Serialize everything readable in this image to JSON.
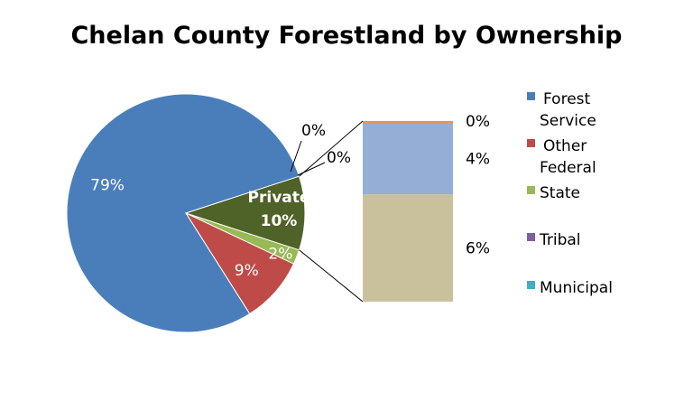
{
  "chart_data": {
    "type": "pie",
    "subtype": "bar-of-pie",
    "title": "Chelan County Forestland by Ownership",
    "slices": [
      {
        "name": "Forest Service",
        "value": 79,
        "label": "79%",
        "color": "#4A7EBB"
      },
      {
        "name": "Other Federal",
        "value": 9,
        "label": "9%",
        "color": "#BE4B48"
      },
      {
        "name": "State",
        "value": 2,
        "label": "2%",
        "color": "#98B954"
      },
      {
        "name": "Tribal",
        "value": 0,
        "label": "0%",
        "color": "#7D60A0"
      },
      {
        "name": "Municipal",
        "value": 0,
        "label": "0%",
        "color": "#46AAC5"
      }
    ],
    "aggregate_slice": {
      "name": "Private",
      "value": 10,
      "label_name": "Private",
      "label_value": "10%",
      "color": "#4F6228"
    },
    "bar_segments": [
      {
        "value": 6,
        "label": "6%",
        "color": "#C9C19C"
      },
      {
        "value": 4,
        "label": "4%",
        "color": "#95AED6"
      },
      {
        "value": 0.1,
        "label": "0%",
        "color": "#E6925A"
      }
    ],
    "legend": {
      "position": "right",
      "entries": [
        {
          "lines": [
            "Forest",
            "Service"
          ],
          "color": "#4A7EBB"
        },
        {
          "lines": [
            "Other",
            "Federal"
          ],
          "color": "#BE4B48"
        },
        {
          "lines": [
            "State"
          ],
          "color": "#98B954"
        },
        {
          "lines": [
            "Tribal"
          ],
          "color": "#7D60A0"
        },
        {
          "lines": [
            "Municipal"
          ],
          "color": "#46AAC5"
        }
      ]
    }
  }
}
